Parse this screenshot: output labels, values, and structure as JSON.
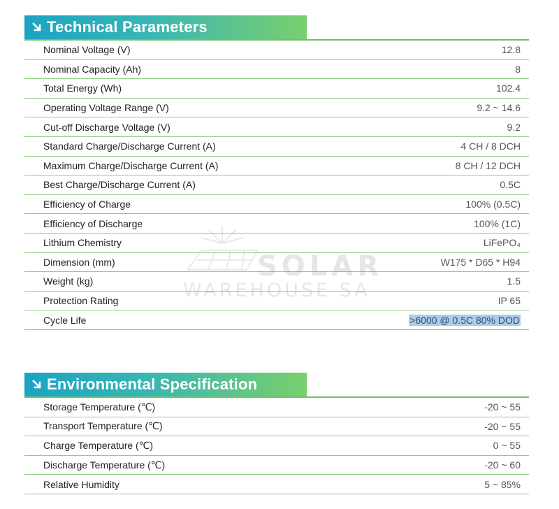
{
  "watermark": {
    "line1": "SOLAR",
    "line2": "WAREHOUSE SA"
  },
  "colors": {
    "header_start": "#1aa3c4",
    "header_end": "#79cf6c",
    "row_border": "#8bd07e",
    "selection": "#aecbe6"
  },
  "technical": {
    "title": "Technical Parameters",
    "rows": [
      {
        "label": "Nominal Voltage (V)",
        "value": "12.8"
      },
      {
        "label": "Nominal Capacity (Ah)",
        "value": "8"
      },
      {
        "label": "Total Energy (Wh)",
        "value": "102.4"
      },
      {
        "label": "Operating Voltage Range (V)",
        "value": "9.2 ~ 14.6"
      },
      {
        "label": "Cut-off Discharge Voltage (V)",
        "value": "9.2"
      },
      {
        "label": "Standard Charge/Discharge Current (A)",
        "value": "4 CH / 8 DCH"
      },
      {
        "label": "Maximum Charge/Discharge Current (A)",
        "value": "8 CH / 12 DCH"
      },
      {
        "label": "Best Charge/Discharge Current (A)",
        "value": "0.5C"
      },
      {
        "label": "Efficiency of Charge",
        "value": "100% (0.5C)"
      },
      {
        "label": "Efficiency of Discharge",
        "value": "100% (1C)"
      },
      {
        "label": "Lithium Chemistry",
        "value": "LiFePO₄"
      },
      {
        "label": "Dimension (mm)",
        "value": "W175 * D65 * H94"
      },
      {
        "label": "Weight (kg)",
        "value": "1.5"
      },
      {
        "label": "Protection Rating",
        "value": "IP 65"
      },
      {
        "label": "Cycle Life",
        "value": ">6000 @ 0.5C 80% DOD"
      }
    ]
  },
  "environmental": {
    "title": "Environmental Specification",
    "rows": [
      {
        "label": "Storage Temperature (℃)",
        "value": "-20 ~ 55"
      },
      {
        "label": "Transport Temperature (℃)",
        "value": "-20 ~ 55"
      },
      {
        "label": "Charge Temperature (℃)",
        "value": "0 ~ 55"
      },
      {
        "label": "Discharge Temperature (℃)",
        "value": "-20 ~ 60"
      },
      {
        "label": "Relative Humidity",
        "value": "5 ~ 85%"
      }
    ]
  }
}
